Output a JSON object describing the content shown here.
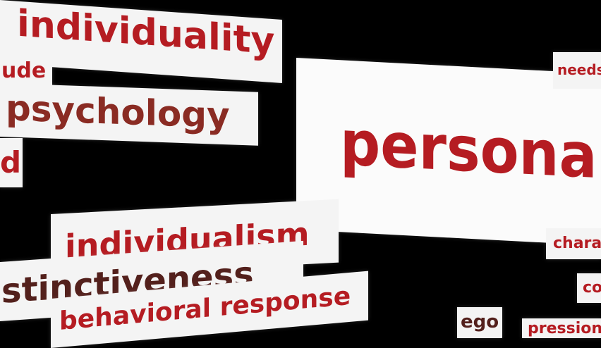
{
  "words": {
    "individuality": "individuality",
    "attitude_fragment": "ude",
    "psychology": "psychology",
    "d_fragment": "d",
    "personality": "personalit",
    "needs": "needs",
    "individualism": "individualism",
    "distinctiveness": "stinctiveness",
    "behavioral_response": "behavioral response",
    "character": "chara",
    "co_fragment": "co",
    "ego": "ego",
    "expression": "pression"
  },
  "colors": {
    "background": "#000000",
    "card": "#f4f4f4",
    "red": "#b51c22",
    "dark": "#53201c"
  }
}
